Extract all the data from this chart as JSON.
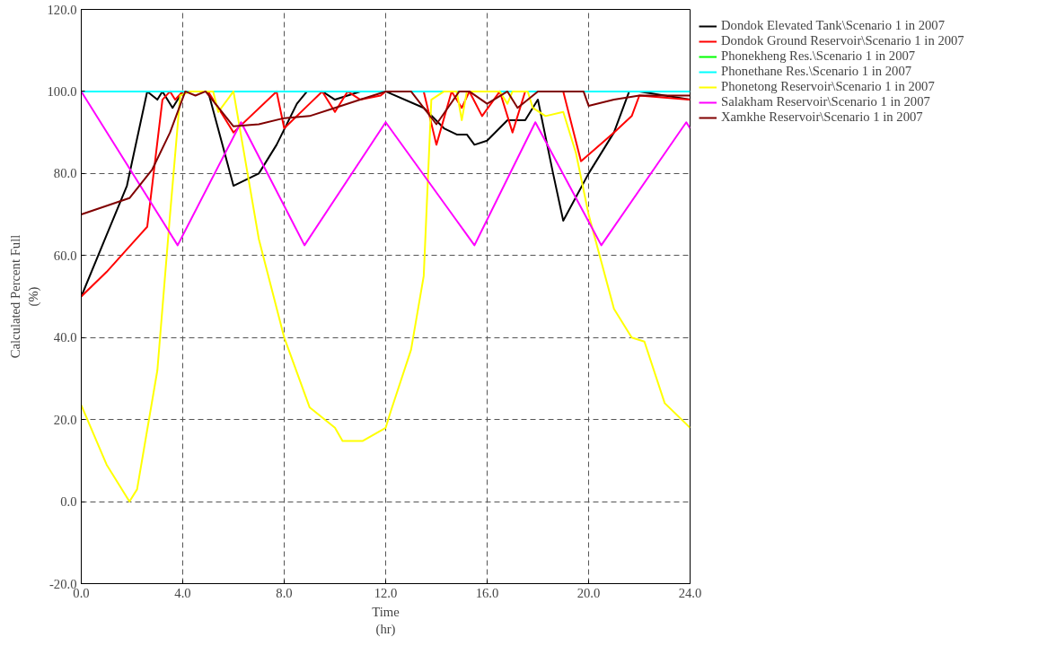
{
  "chart_data": {
    "type": "line",
    "xlabel": "Time\n(hr)",
    "ylabel": "Calculated Percent Full\n(%)",
    "xlim": [
      0,
      24
    ],
    "ylim": [
      -20,
      120
    ],
    "xticks": [
      {
        "value": 0,
        "label": "0.0"
      },
      {
        "value": 4,
        "label": "4.0"
      },
      {
        "value": 8,
        "label": "8.0"
      },
      {
        "value": 12,
        "label": "12.0"
      },
      {
        "value": 16,
        "label": "16.0"
      },
      {
        "value": 20,
        "label": "20.0"
      },
      {
        "value": 24,
        "label": "24.0"
      }
    ],
    "yticks": [
      {
        "value": -20,
        "label": "-20.0"
      },
      {
        "value": 0,
        "label": "0.0"
      },
      {
        "value": 20,
        "label": "20.0"
      },
      {
        "value": 40,
        "label": "40.0"
      },
      {
        "value": 60,
        "label": "60.0"
      },
      {
        "value": 80,
        "label": "80.0"
      },
      {
        "value": 100,
        "label": "100.0"
      },
      {
        "value": 120,
        "label": "120.0"
      }
    ],
    "grid": true,
    "legend": "top right",
    "line_style": "solid",
    "series": [
      {
        "name": "Dondok Elevated Tank\\Scenario 1 in 2007",
        "color": "#000000",
        "x": [
          0,
          1,
          1.8,
          2.6,
          3,
          3.2,
          3.6,
          4,
          4.4,
          5,
          6,
          7,
          7.7,
          8.5,
          8.9,
          9.5,
          10,
          11,
          12,
          13.5,
          14.3,
          14.8,
          15.2,
          15.5,
          16,
          16.8,
          17.5,
          18,
          18.6,
          19,
          20,
          21,
          21.6,
          22,
          24
        ],
        "values": [
          50,
          65,
          77,
          100,
          98,
          100,
          96,
          100,
          100,
          100,
          77,
          80,
          87,
          97,
          100,
          100,
          98,
          100,
          100,
          96,
          91,
          89.5,
          89.5,
          87,
          88,
          93,
          93,
          98,
          80,
          68.5,
          80,
          90,
          100,
          100,
          98
        ]
      },
      {
        "name": "Dondok Ground Reservoir\\Scenario 1 in 2007",
        "color": "#ff0000",
        "x": [
          0,
          1,
          1.8,
          2.6,
          3.2,
          3.5,
          3.7,
          4,
          5,
          6,
          7.7,
          8,
          9,
          9.5,
          10,
          10.5,
          11,
          11.8,
          12,
          13.5,
          14,
          14.6,
          15,
          15.3,
          15.8,
          16.5,
          17,
          17.5,
          18,
          19,
          19.7,
          21,
          21.7,
          22,
          24
        ],
        "values": [
          50,
          56,
          61.5,
          67,
          98,
          100,
          98,
          100,
          100,
          90,
          100,
          91,
          97,
          100,
          95,
          100,
          98,
          99,
          100,
          100,
          87,
          100,
          96,
          100,
          94,
          100,
          90,
          100,
          100,
          100,
          83,
          90,
          94,
          99,
          98
        ]
      },
      {
        "name": "Phonekheng Res.\\Scenario 1 in 2007",
        "color": "#00ff00"
      },
      {
        "name": "Phonethane Res.\\Scenario 1 in 2007",
        "color": "#00ffff",
        "x": [
          0,
          24
        ],
        "values": [
          100,
          100
        ]
      },
      {
        "name": "Phonetong Reservoir\\Scenario 1 in 2007",
        "color": "#ffff00",
        "x": [
          0,
          1,
          1.9,
          2.2,
          3,
          3.5,
          3.9,
          4.3,
          5.2,
          5.4,
          6,
          7,
          8,
          9,
          10,
          10.3,
          11.1,
          12,
          12.2,
          13,
          13.5,
          13.8,
          14.3,
          14.8,
          15,
          15.2,
          16,
          16.5,
          16.8,
          17,
          17.6,
          17.8,
          18.3,
          19,
          19.5,
          20,
          21,
          21.7,
          22.2,
          23,
          24
        ],
        "values": [
          23.5,
          9,
          0,
          3,
          32,
          70,
          99,
          100,
          100,
          95,
          100,
          64,
          40,
          23,
          18,
          14.8,
          14.8,
          18,
          22,
          37,
          55,
          98,
          100,
          100,
          93,
          100,
          100,
          100,
          97,
          100,
          100,
          96,
          94,
          95,
          85,
          70,
          47,
          40,
          39,
          24,
          18
        ]
      },
      {
        "name": "Salakham Reservoir\\Scenario 1 in 2007",
        "color": "#ff00ff",
        "x": [
          0,
          3.8,
          6.3,
          8.8,
          12,
          15.5,
          17.9,
          20.5,
          23.85,
          24
        ],
        "values": [
          100,
          62.5,
          92.5,
          62.5,
          92.5,
          62.5,
          92.5,
          62.5,
          92.5,
          91
        ]
      },
      {
        "name": "Xamkhe Reservoir\\Scenario 1 in 2007",
        "color": "#800000",
        "x": [
          0,
          1.9,
          2.8,
          3.5,
          4.1,
          4.5,
          4.9,
          6,
          7,
          8,
          9,
          10,
          11,
          12,
          13,
          14,
          14.9,
          15.3,
          16,
          16.8,
          17.2,
          18,
          19,
          19.8,
          20,
          21,
          22,
          24
        ],
        "values": [
          70,
          74,
          81,
          90,
          100,
          99,
          100,
          91.5,
          92,
          93.5,
          94,
          96,
          98,
          100,
          100,
          92,
          100,
          100,
          97,
          100,
          96,
          100,
          100,
          100,
          96.5,
          98,
          99,
          99
        ]
      }
    ]
  }
}
